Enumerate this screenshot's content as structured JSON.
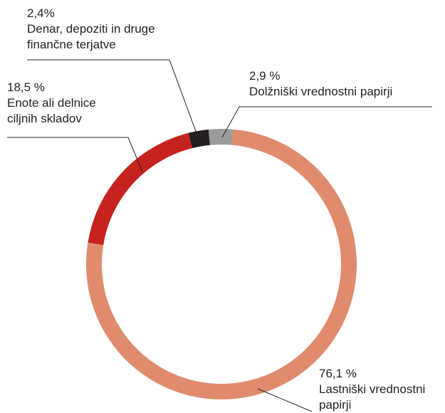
{
  "chart_data": {
    "type": "donut",
    "slices": [
      {
        "value_label": "2,9 %",
        "label_lines": [
          "Dolžniški vrednostni papirji"
        ],
        "value": 2.9,
        "color": "#9b9b9b"
      },
      {
        "value_label": "76,1 %",
        "label_lines": [
          "Lastniški vrednostni",
          "papirji"
        ],
        "value": 76.1,
        "color": "#e08b6e"
      },
      {
        "value_label": "18,5 %",
        "label_lines": [
          "Enote ali delnice",
          "ciljnih skladov"
        ],
        "value": 18.5,
        "color": "#c62320"
      },
      {
        "value_label": "2,4%",
        "label_lines": [
          "Denar, depoziti in druge",
          "finančne terjatve"
        ],
        "value": 2.4,
        "color": "#231f20"
      }
    ],
    "leader_line_color": "#222222"
  }
}
